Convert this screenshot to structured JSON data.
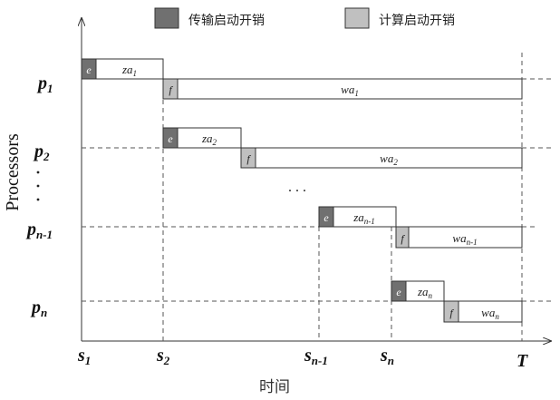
{
  "legend": {
    "transfer_label": "传输启动开销",
    "compute_label": "计算启动开销",
    "colors": {
      "transfer": "#707070",
      "compute": "#c0c0c0",
      "box": "#ffffff",
      "stroke": "#333333"
    }
  },
  "axis": {
    "y_label": "Processors",
    "x_label": "时间",
    "end_label": "T"
  },
  "ellipsis": {
    "vertical": "·\n·\n·",
    "horizontal": ". . ."
  },
  "processors": [
    {
      "name": "p",
      "sub": "1",
      "start": "s",
      "start_sub": "1",
      "transfer": "e",
      "za_base": "za",
      "za_sub": "1",
      "compute": "f",
      "wa_base": "wa",
      "wa_sub": "1"
    },
    {
      "name": "p",
      "sub": "2",
      "start": "s",
      "start_sub": "2",
      "transfer": "e",
      "za_base": "za",
      "za_sub": "2",
      "compute": "f",
      "wa_base": "wa",
      "wa_sub": "2"
    },
    {
      "name": "p",
      "sub": "n-1",
      "start": "s",
      "start_sub": "n-1",
      "transfer": "e",
      "za_base": "za",
      "za_sub": "n-1",
      "compute": "f",
      "wa_base": "wa",
      "wa_sub": "n-1"
    },
    {
      "name": "p",
      "sub": "n",
      "start": "s",
      "start_sub": "n",
      "transfer": "e",
      "za_base": "za",
      "za_sub": "n",
      "compute": "f",
      "wa_base": "wa",
      "wa_sub": "n"
    }
  ]
}
